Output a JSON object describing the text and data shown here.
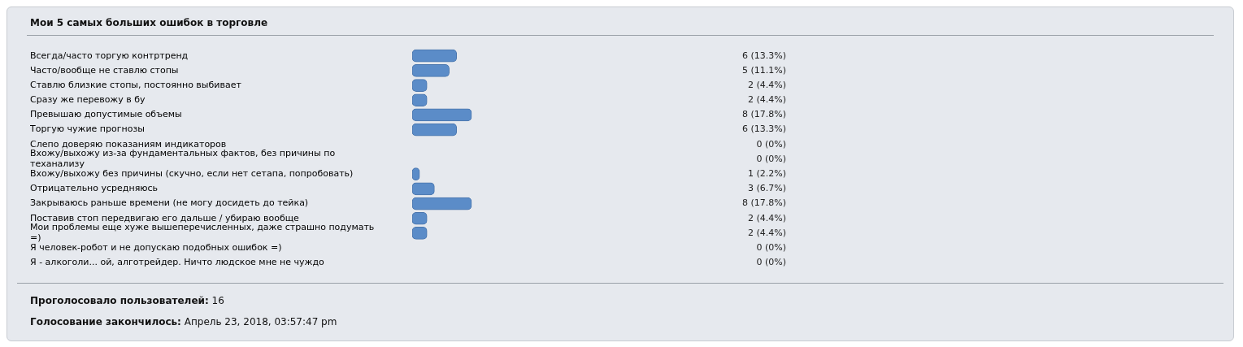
{
  "chart_data": {
    "type": "bar",
    "orientation": "horizontal",
    "title": "Мои 5 самых больших ошибок в торговле",
    "categories": [
      "Всегда/часто торгую контртренд",
      "Часто/вообще не ставлю стопы",
      "Ставлю близкие стопы, постоянно выбивает",
      "Сразу же перевожу в бу",
      "Превышаю допустимые объемы",
      "Торгую чужие прогнозы",
      "Слепо доверяю показаниям индикаторов",
      "Вхожу/выхожу из-за фундаментальных фактов, без причины по теханализу",
      "Вхожу/выхожу без причины (скучно, если нет сетапа, попробовать)",
      "Отрицательно усредняюсь",
      "Закрываюсь раньше времени (не могу досидеть до тейка)",
      "Поставив стоп передвигаю его дальше / убираю вообще",
      "Мои проблемы еще хуже вышеперечисленных, даже страшно подумать =)",
      "Я человек-робот и не допускаю подобных ошибок =)",
      "Я - алкоголи... ой, алготрейдер. Ничто людское мне не чуждо"
    ],
    "values": [
      6,
      5,
      2,
      2,
      8,
      6,
      0,
      0,
      1,
      3,
      8,
      2,
      2,
      0,
      0
    ],
    "value_labels": [
      "6 (13.3%)",
      "5 (11.1%)",
      "2 (4.4%)",
      "2 (4.4%)",
      "8 (17.8%)",
      "6 (13.3%)",
      "0 (0%)",
      "0 (0%)",
      "1 (2.2%)",
      "3 (6.7%)",
      "8 (17.8%)",
      "2 (4.4%)",
      "2 (4.4%)",
      "0 (0%)",
      "0 (0%)"
    ],
    "color": "#5b8cc8",
    "annotations": [
      "Проголосовало пользователей: 16",
      "Голосование закончилось: Апрель 23, 2018, 03:57:47 pm"
    ]
  }
}
